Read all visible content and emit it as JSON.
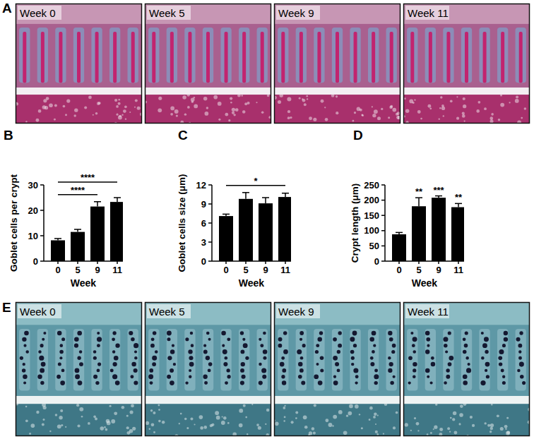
{
  "panel_labels": [
    "A",
    "B",
    "C",
    "D",
    "E"
  ],
  "panel_a": {
    "labels": [
      "Week 0",
      "Week 5",
      "Week 9",
      "Week 11"
    ]
  },
  "panel_e": {
    "labels": [
      "Week 0",
      "Week 5",
      "Week 9",
      "Week 11"
    ]
  },
  "chart_data": [
    {
      "type": "bar",
      "x_label": "Week",
      "y_label": "Goblet cells per crypt",
      "categories": [
        "0",
        "5",
        "9",
        "11"
      ],
      "values": [
        8.2,
        11.5,
        21.5,
        23.3
      ],
      "errors": [
        0.7,
        1.0,
        1.9,
        1.7
      ],
      "color": "#000000",
      "ylim": [
        0,
        30
      ],
      "yticks": [
        0,
        10,
        20,
        30
      ],
      "brackets": [
        {
          "from": "0",
          "to": "9",
          "text": "****"
        },
        {
          "from": "0",
          "to": "11",
          "text": "****"
        }
      ]
    },
    {
      "type": "bar",
      "x_label": "Week",
      "y_label": "Goblet cells size (μm)",
      "categories": [
        "0",
        "5",
        "9",
        "11"
      ],
      "values": [
        7.1,
        9.8,
        9.1,
        10.1
      ],
      "errors": [
        0.3,
        1.0,
        0.9,
        0.6
      ],
      "color": "#000000",
      "ylim": [
        0,
        12
      ],
      "yticks": [
        0,
        3,
        6,
        9,
        12
      ],
      "brackets": [
        {
          "from": "0",
          "to": "11",
          "text": "*"
        }
      ]
    },
    {
      "type": "bar",
      "x_label": "Week",
      "y_label": "Crypt length (μm)",
      "categories": [
        "0",
        "5",
        "9",
        "11"
      ],
      "values": [
        88,
        180,
        208,
        177
      ],
      "errors": [
        6,
        28,
        6,
        12
      ],
      "color": "#000000",
      "ylim": [
        0,
        250
      ],
      "yticks": [
        0,
        50,
        100,
        150,
        200,
        250
      ],
      "annotations": [
        {
          "category": "5",
          "text": "**"
        },
        {
          "category": "9",
          "text": "***"
        },
        {
          "category": "11",
          "text": "**"
        }
      ]
    }
  ]
}
